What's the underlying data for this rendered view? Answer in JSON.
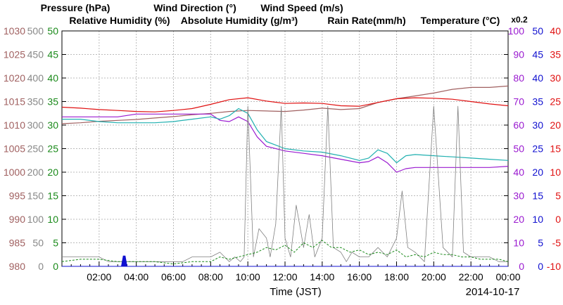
{
  "chart_data": {
    "type": "line",
    "date_label": "2014-10-17",
    "xlabel": "Time (JST)",
    "x_ticks": [
      "02:00",
      "04:00",
      "06:00",
      "08:00",
      "10:00",
      "12:00",
      "14:00",
      "16:00",
      "18:00",
      "20:00",
      "22:00",
      "00:00"
    ],
    "x_range_hours": [
      0,
      24
    ],
    "grid": true,
    "legend": [
      {
        "name": "Pressure (hPa)",
        "color": "#a06060"
      },
      {
        "name": "Wind Direction (°)",
        "color": "#888888"
      },
      {
        "name": "Wind Speed (m/s)",
        "color": "#1a8a1a"
      },
      {
        "name": "Relative Humidity (%)",
        "color": "#9a1ad0"
      },
      {
        "name": "Absolute Humidity (g/m³)",
        "color": "#20b0b0"
      },
      {
        "name": "Rain Rate(mm/h)",
        "color": "#1010d0"
      },
      {
        "name": "Temperature (°C)",
        "color": "#e01010"
      }
    ],
    "abs_humidity_scale_note": "x0.2",
    "axes": {
      "pressure": {
        "color": "#a06060",
        "range": [
          980,
          1030
        ],
        "ticks": [
          "980",
          "985",
          "990",
          "995",
          "1000",
          "1005",
          "1010",
          "1015",
          "1020",
          "1025",
          "1030"
        ]
      },
      "wind_direction": {
        "color": "#888888",
        "range": [
          0,
          500
        ],
        "ticks": [
          "0",
          "50",
          "100",
          "150",
          "200",
          "250",
          "300",
          "350",
          "400",
          "450",
          "500"
        ]
      },
      "wind_speed": {
        "color": "#1a8a1a",
        "range": [
          0,
          50
        ],
        "ticks": [
          "0",
          "5",
          "10",
          "15",
          "20",
          "25",
          "30",
          "35",
          "40",
          "45",
          "50"
        ]
      },
      "humidity": {
        "color": "#9a1ad0",
        "range": [
          0,
          100
        ],
        "ticks": [
          "0",
          "10",
          "20",
          "30",
          "40",
          "50",
          "60",
          "70",
          "80",
          "90",
          "100"
        ]
      },
      "rain_rate": {
        "color": "#1010d0",
        "range": [
          0,
          50
        ],
        "ticks": [
          "0",
          "5",
          "10",
          "15",
          "20",
          "25",
          "30",
          "35",
          "40",
          "45",
          "50"
        ]
      },
      "temperature": {
        "color": "#e01010",
        "range": [
          -10,
          40
        ],
        "ticks": [
          "-10",
          "-5",
          "0",
          "5",
          "10",
          "15",
          "20",
          "25",
          "30",
          "35",
          "40"
        ]
      }
    },
    "series": [
      {
        "name": "Pressure (hPa)",
        "axis": "pressure",
        "x": [
          0,
          1,
          2,
          3,
          4,
          5,
          6,
          7,
          8,
          9,
          10,
          11,
          12,
          13,
          14,
          15,
          16,
          17,
          18,
          19,
          20,
          21,
          22,
          23,
          24
        ],
        "values": [
          1010.3,
          1010.5,
          1010.8,
          1011.0,
          1011.2,
          1011.5,
          1011.8,
          1012.2,
          1012.5,
          1012.9,
          1013.1,
          1013.0,
          1012.9,
          1013.2,
          1013.6,
          1013.3,
          1013.5,
          1014.8,
          1015.6,
          1016.2,
          1016.8,
          1017.6,
          1018.0,
          1018.0,
          1018.3
        ]
      },
      {
        "name": "Temperature (°C)",
        "axis": "temperature",
        "x": [
          0,
          1,
          2,
          3,
          4,
          5,
          6,
          7,
          8,
          9,
          10,
          11,
          12,
          13,
          14,
          15,
          16,
          17,
          18,
          19,
          20,
          21,
          22,
          23,
          24
        ],
        "values": [
          23.8,
          23.6,
          23.3,
          23.1,
          22.9,
          22.8,
          23.1,
          23.5,
          24.4,
          25.4,
          25.8,
          25.1,
          24.6,
          24.7,
          24.6,
          24.1,
          24.0,
          24.8,
          25.6,
          25.8,
          25.7,
          25.5,
          25.0,
          24.5,
          24.1
        ]
      },
      {
        "name": "Relative Humidity (%)",
        "axis": "humidity",
        "x": [
          0,
          1,
          2,
          3,
          4,
          5,
          6,
          7,
          8,
          8.5,
          9,
          9.5,
          10,
          10.5,
          11,
          12,
          13,
          14,
          15,
          16,
          16.5,
          17,
          17.5,
          18,
          18.5,
          19,
          20,
          21,
          22,
          23,
          24
        ],
        "values": [
          63.5,
          63.5,
          63.5,
          63.5,
          64.7,
          64.7,
          64.7,
          64.7,
          64.7,
          62,
          61.5,
          63.5,
          61.5,
          55,
          51,
          49,
          48,
          47,
          45.5,
          44,
          44.5,
          46.5,
          44,
          40,
          41.5,
          42,
          42,
          42,
          42,
          42,
          42.5
        ]
      },
      {
        "name": "Absolute Humidity (g/m³)",
        "axis": "humidity",
        "x": [
          0,
          1,
          2,
          3,
          4,
          5,
          6,
          7,
          8,
          8.5,
          9,
          9.5,
          10,
          10.5,
          11,
          12,
          13,
          14,
          15,
          16,
          16.5,
          17,
          17.5,
          18,
          18.5,
          19,
          20,
          21,
          22,
          23,
          24
        ],
        "values": [
          62.5,
          62.5,
          61.5,
          61,
          61,
          61,
          61.5,
          62.5,
          63.5,
          62.5,
          64,
          67,
          65,
          58,
          53,
          50,
          49,
          48.5,
          47,
          45,
          46,
          49.5,
          48,
          44,
          47,
          47.5,
          47,
          46.5,
          46,
          45.5,
          45
        ]
      },
      {
        "name": "Wind Direction (°)",
        "axis": "wind_direction",
        "x": [
          0,
          0.5,
          1,
          1.5,
          2,
          2.5,
          3,
          4,
          5,
          6,
          6.5,
          7,
          7.5,
          8,
          8.5,
          9,
          9.3,
          9.6,
          9.8,
          10,
          10.3,
          10.6,
          11,
          11.2,
          11.5,
          11.8,
          12,
          12.3,
          12.6,
          13,
          13.3,
          13.6,
          14,
          14.3,
          14.6,
          15,
          15.3,
          15.6,
          16,
          16.5,
          17,
          17.5,
          18,
          18.3,
          18.6,
          19,
          19.5,
          20,
          20.5,
          21,
          21.3,
          21.6,
          22,
          22.5,
          23,
          23.5,
          24
        ],
        "values": [
          20,
          20,
          20,
          20,
          20,
          10,
          10,
          10,
          10,
          10,
          10,
          20,
          20,
          20,
          30,
          10,
          20,
          10,
          20,
          340,
          20,
          80,
          60,
          20,
          90,
          340,
          60,
          20,
          130,
          40,
          110,
          20,
          60,
          340,
          40,
          30,
          10,
          30,
          20,
          20,
          40,
          20,
          60,
          160,
          40,
          30,
          10,
          340,
          40,
          20,
          340,
          30,
          20,
          20,
          20,
          10,
          10
        ]
      },
      {
        "name": "Wind Speed (m/s)",
        "axis": "wind_speed",
        "x": [
          0,
          1,
          2,
          3,
          4,
          5,
          6,
          7,
          8,
          8.5,
          9,
          9.5,
          10,
          10.5,
          11,
          11.5,
          12,
          12.5,
          13,
          13.5,
          14,
          14.5,
          15,
          15.5,
          16,
          16.5,
          17,
          17.5,
          18,
          18.5,
          19,
          19.5,
          20,
          20.5,
          21,
          21.5,
          22,
          22.5,
          23,
          23.5,
          24
        ],
        "values": [
          1,
          1.5,
          1.5,
          1,
          1,
          1,
          0.5,
          1,
          1,
          2,
          1.5,
          2,
          2.5,
          3,
          4,
          3.5,
          4.5,
          3,
          5,
          4,
          5.5,
          4,
          4,
          3,
          3.5,
          2.5,
          3,
          2.5,
          3.5,
          2,
          2.5,
          2,
          3,
          2.5,
          2.5,
          2,
          2,
          1.5,
          1.5,
          1.5,
          1
        ]
      },
      {
        "name": "Rain Rate(mm/h)",
        "axis": "rain_rate",
        "x": [
          0,
          3.2,
          3.3,
          3.4,
          3.5,
          24
        ],
        "values": [
          0,
          0,
          2.2,
          2.2,
          0,
          0
        ]
      }
    ]
  }
}
